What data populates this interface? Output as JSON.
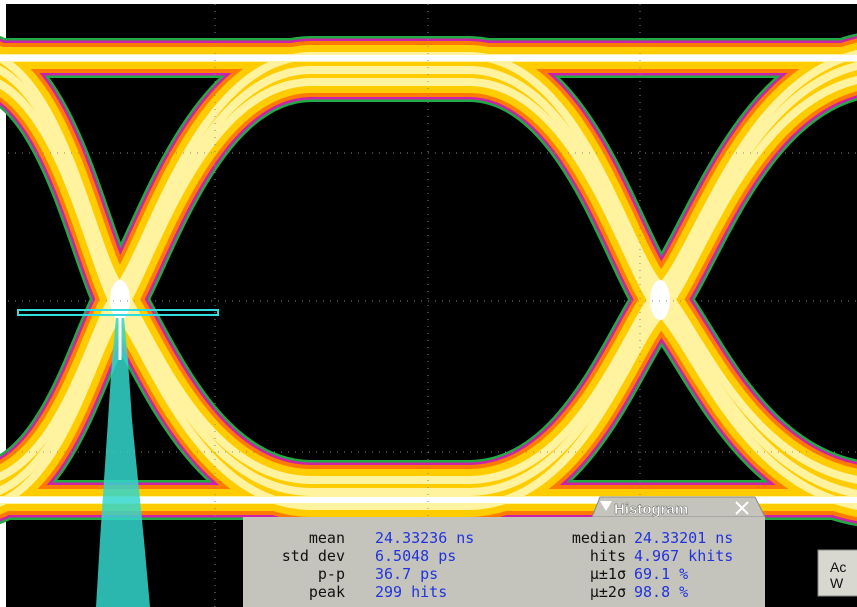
{
  "histogram": {
    "title": "Histogram",
    "left": [
      {
        "label": "mean",
        "value": "24.33236 ns"
      },
      {
        "label": "std dev",
        "value": "6.5048 ps"
      },
      {
        "label": "p-p",
        "value": "36.7 ps"
      },
      {
        "label": "peak",
        "value": "299 hits"
      }
    ],
    "right": [
      {
        "label": "median",
        "value": "24.33201 ns"
      },
      {
        "label": "hits",
        "value": "4.967 khits"
      },
      {
        "label": "µ±1σ",
        "value": "69.1 %"
      },
      {
        "label": "µ±2σ",
        "value": "98.8 %"
      }
    ]
  },
  "side_button": {
    "line1": "Ac",
    "line2": "W"
  }
}
